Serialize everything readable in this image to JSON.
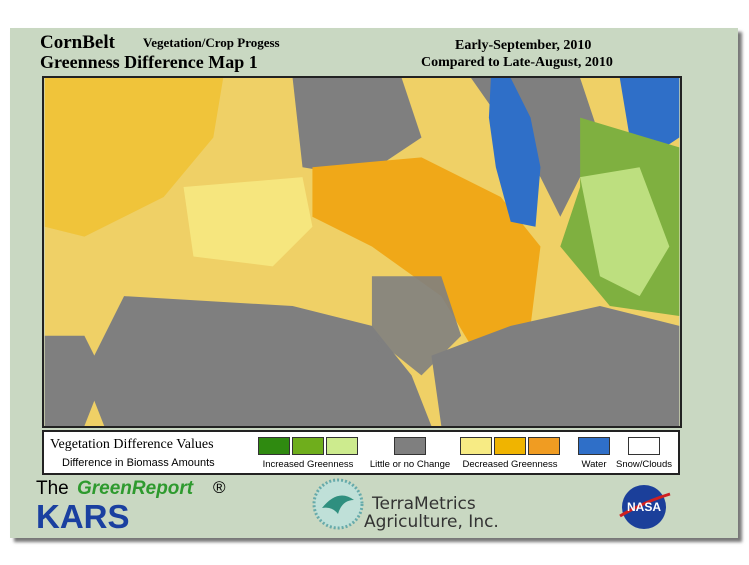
{
  "header": {
    "region": "CornBelt",
    "subtitle": "Vegetation/Crop Progess",
    "title": "Greenness Difference Map 1",
    "date": "Early-September, 2010",
    "comparison": "Compared to Late-August, 2010"
  },
  "legend": {
    "title": "Vegetation Difference Values",
    "subtitle": "Difference in Biomass Amounts",
    "items": [
      {
        "label": "Increased Greenness",
        "colors": [
          "#2f8a10",
          "#6fae1c",
          "#cdeb8e"
        ]
      },
      {
        "label": "Little or no Change",
        "colors": [
          "#7f7f7f"
        ]
      },
      {
        "label": "Decreased Greenness",
        "colors": [
          "#f7eb84",
          "#f0b400",
          "#f09c22"
        ]
      },
      {
        "label": "Water",
        "colors": [
          "#2f6fc8"
        ]
      },
      {
        "label": "Snow/Clouds",
        "colors": [
          "#ffffff"
        ]
      }
    ]
  },
  "footer": {
    "the": "The",
    "report": "GreenReport",
    "registered": "®",
    "kars": "KARS",
    "company": "TerraMetrics",
    "company_line2": "Agriculture, Inc.",
    "nasa": "NASA"
  }
}
